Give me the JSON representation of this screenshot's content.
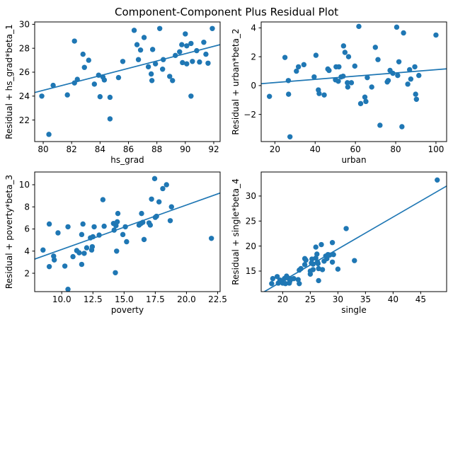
{
  "figure": {
    "title": "Component-Component Plus Residual Plot",
    "background": "#ffffff",
    "accent_color": "#1f77b4",
    "text_color": "#000000"
  },
  "chart_data": [
    {
      "id": "hs_grad",
      "type": "scatter",
      "xlabel": "hs_grad",
      "ylabel": "Residual + hs_grad*beta_1",
      "xlim": [
        79.4,
        92.45
      ],
      "ylim": [
        20.2,
        30.2
      ],
      "grid": false,
      "legend": null,
      "xticks": {
        "values": [
          80,
          82,
          84,
          86,
          88,
          90,
          92
        ],
        "labels": [
          "80",
          "82",
          "84",
          "86",
          "88",
          "90",
          "92"
        ]
      },
      "yticks": {
        "values": [
          22,
          24,
          26,
          28,
          30
        ],
        "labels": [
          "22",
          "24",
          "26",
          "28",
          "30"
        ]
      },
      "marker_color": "#1f77b4",
      "line_color": "#1f77b4",
      "trend_line": {
        "x": [
          79.4,
          92.45
        ],
        "y": [
          24.3,
          28.3
        ]
      },
      "points": [
        [
          79.9,
          24.0
        ],
        [
          80.4,
          20.8
        ],
        [
          80.7,
          24.9
        ],
        [
          81.7,
          24.1
        ],
        [
          82.2,
          28.6
        ],
        [
          82.2,
          25.1
        ],
        [
          82.4,
          25.4
        ],
        [
          82.8,
          27.5
        ],
        [
          82.9,
          26.4
        ],
        [
          83.2,
          27.0
        ],
        [
          83.6,
          25.0
        ],
        [
          83.9,
          25.75
        ],
        [
          84.0,
          23.95
        ],
        [
          84.2,
          25.6
        ],
        [
          84.3,
          25.35
        ],
        [
          84.7,
          23.9
        ],
        [
          84.7,
          22.1
        ],
        [
          85.3,
          25.55
        ],
        [
          85.6,
          26.9
        ],
        [
          86.4,
          29.5
        ],
        [
          86.6,
          28.3
        ],
        [
          86.7,
          27.05
        ],
        [
          86.85,
          27.85
        ],
        [
          87.1,
          28.9
        ],
        [
          87.4,
          26.45
        ],
        [
          87.6,
          25.85
        ],
        [
          87.65,
          25.3
        ],
        [
          87.7,
          27.9
        ],
        [
          87.9,
          26.7
        ],
        [
          88.2,
          29.65
        ],
        [
          88.4,
          26.25
        ],
        [
          88.45,
          27.05
        ],
        [
          88.9,
          25.65
        ],
        [
          89.1,
          25.3
        ],
        [
          89.3,
          27.4
        ],
        [
          89.6,
          27.7
        ],
        [
          89.75,
          28.3
        ],
        [
          89.8,
          26.8
        ],
        [
          90.0,
          29.2
        ],
        [
          90.1,
          28.2
        ],
        [
          90.1,
          26.7
        ],
        [
          90.4,
          24.0
        ],
        [
          90.4,
          28.4
        ],
        [
          90.5,
          26.9
        ],
        [
          90.8,
          27.8
        ],
        [
          91.0,
          26.85
        ],
        [
          91.3,
          28.5
        ],
        [
          91.45,
          27.5
        ],
        [
          91.6,
          26.75
        ],
        [
          91.9,
          29.65
        ]
      ]
    },
    {
      "id": "urban",
      "type": "scatter",
      "xlabel": "urban",
      "ylabel": "Residual + urban*beta_2",
      "xlim": [
        13.2,
        105.3
      ],
      "ylim": [
        -3.88,
        4.41
      ],
      "grid": false,
      "legend": null,
      "xticks": {
        "values": [
          20,
          40,
          60,
          80,
          100
        ],
        "labels": [
          "20",
          "40",
          "60",
          "80",
          "100"
        ]
      },
      "yticks": {
        "values": [
          -2,
          0,
          2,
          4
        ],
        "labels": [
          "−2",
          "0",
          "2",
          "4"
        ]
      },
      "marker_color": "#1f77b4",
      "line_color": "#1f77b4",
      "trend_line": {
        "x": [
          13.2,
          105.3
        ],
        "y": [
          0.13,
          1.16
        ]
      },
      "points": [
        [
          17.3,
          -0.75
        ],
        [
          25.0,
          1.95
        ],
        [
          26.7,
          0.35
        ],
        [
          26.8,
          -0.6
        ],
        [
          27.5,
          -3.55
        ],
        [
          30.7,
          1.0
        ],
        [
          31.7,
          1.3
        ],
        [
          34.4,
          1.45
        ],
        [
          39.5,
          0.6
        ],
        [
          40.4,
          2.1
        ],
        [
          41.6,
          -0.3
        ],
        [
          42.0,
          -0.55
        ],
        [
          44.5,
          -0.65
        ],
        [
          46.3,
          1.15
        ],
        [
          46.9,
          1.05
        ],
        [
          50.1,
          0.4
        ],
        [
          50.4,
          1.3
        ],
        [
          51.5,
          0.3
        ],
        [
          51.8,
          1.3
        ],
        [
          52.9,
          0.6
        ],
        [
          53.9,
          0.65
        ],
        [
          54.1,
          2.75
        ],
        [
          54.8,
          2.3
        ],
        [
          56.0,
          0.2
        ],
        [
          56.2,
          -0.1
        ],
        [
          56.6,
          2.0
        ],
        [
          58.0,
          0.2
        ],
        [
          59.7,
          1.35
        ],
        [
          61.7,
          4.1
        ],
        [
          62.6,
          -1.25
        ],
        [
          64.7,
          -0.8
        ],
        [
          65.2,
          -1.1
        ],
        [
          65.9,
          0.55
        ],
        [
          68.1,
          -0.1
        ],
        [
          69.9,
          2.65
        ],
        [
          71.2,
          1.8
        ],
        [
          72.2,
          -2.75
        ],
        [
          75.8,
          0.25
        ],
        [
          76.3,
          0.35
        ],
        [
          77.2,
          1.05
        ],
        [
          78.6,
          0.85
        ],
        [
          80.5,
          4.05
        ],
        [
          81.0,
          0.7
        ],
        [
          81.6,
          1.65
        ],
        [
          83.1,
          -2.85
        ],
        [
          83.9,
          3.65
        ],
        [
          86.0,
          0.1
        ],
        [
          86.9,
          1.1
        ],
        [
          87.5,
          0.45
        ],
        [
          89.5,
          1.3
        ],
        [
          89.9,
          -0.6
        ],
        [
          90.3,
          -0.95
        ],
        [
          91.5,
          0.7
        ],
        [
          100.0,
          3.5
        ]
      ]
    },
    {
      "id": "poverty",
      "type": "scatter",
      "xlabel": "poverty",
      "ylabel": "Residual + poverty*beta_3",
      "xlim": [
        7.83,
        22.7
      ],
      "ylim": [
        0.34,
        11.15
      ],
      "grid": false,
      "legend": null,
      "xticks": {
        "values": [
          10.0,
          12.5,
          15.0,
          17.5,
          20.0,
          22.5
        ],
        "labels": [
          "10.0",
          "12.5",
          "15.0",
          "17.5",
          "20.0",
          "22.5"
        ]
      },
      "yticks": {
        "values": [
          2,
          4,
          6,
          8,
          10
        ],
        "labels": [
          "2",
          "4",
          "6",
          "8",
          "10"
        ]
      },
      "marker_color": "#1f77b4",
      "line_color": "#1f77b4",
      "trend_line": {
        "x": [
          7.83,
          22.7
        ],
        "y": [
          3.28,
          9.25
        ]
      },
      "points": [
        [
          8.5,
          4.1
        ],
        [
          9.0,
          6.45
        ],
        [
          9.0,
          2.6
        ],
        [
          9.35,
          3.55
        ],
        [
          9.4,
          3.2
        ],
        [
          9.7,
          5.65
        ],
        [
          10.25,
          2.65
        ],
        [
          10.5,
          0.55
        ],
        [
          10.5,
          6.2
        ],
        [
          10.9,
          3.5
        ],
        [
          11.2,
          4.05
        ],
        [
          11.4,
          3.85
        ],
        [
          11.6,
          2.8
        ],
        [
          11.6,
          5.5
        ],
        [
          11.7,
          6.45
        ],
        [
          11.8,
          3.8
        ],
        [
          12.0,
          4.3
        ],
        [
          12.3,
          5.2
        ],
        [
          12.4,
          4.1
        ],
        [
          12.45,
          4.4
        ],
        [
          12.5,
          5.3
        ],
        [
          12.6,
          6.2
        ],
        [
          13.0,
          5.45
        ],
        [
          13.3,
          8.65
        ],
        [
          13.4,
          6.25
        ],
        [
          14.15,
          6.5
        ],
        [
          14.2,
          5.9
        ],
        [
          14.3,
          2.05
        ],
        [
          14.35,
          6.3
        ],
        [
          14.4,
          4.0
        ],
        [
          14.45,
          6.65
        ],
        [
          14.5,
          7.4
        ],
        [
          14.9,
          5.5
        ],
        [
          15.1,
          6.2
        ],
        [
          15.2,
          4.85
        ],
        [
          16.2,
          6.35
        ],
        [
          16.35,
          6.5
        ],
        [
          16.4,
          7.4
        ],
        [
          16.5,
          6.6
        ],
        [
          16.6,
          5.05
        ],
        [
          17.0,
          6.55
        ],
        [
          17.1,
          6.35
        ],
        [
          17.2,
          8.7
        ],
        [
          17.45,
          10.55
        ],
        [
          17.5,
          7.05
        ],
        [
          17.6,
          7.15
        ],
        [
          17.8,
          8.45
        ],
        [
          18.1,
          9.65
        ],
        [
          18.4,
          10.0
        ],
        [
          18.7,
          6.75
        ],
        [
          18.8,
          8.0
        ],
        [
          22.0,
          5.15
        ]
      ]
    },
    {
      "id": "single",
      "type": "scatter",
      "xlabel": "single",
      "ylabel": "Residual + single*beta_4",
      "xlim": [
        16.1,
        49.7
      ],
      "ylim": [
        10.9,
        34.8
      ],
      "grid": false,
      "legend": null,
      "xticks": {
        "values": [
          20,
          25,
          30,
          35,
          40,
          45
        ],
        "labels": [
          "20",
          "25",
          "30",
          "35",
          "40",
          "45"
        ]
      },
      "yticks": {
        "values": [
          15,
          20,
          25,
          30
        ],
        "labels": [
          "15",
          "20",
          "25",
          "30"
        ]
      },
      "marker_color": "#1f77b4",
      "line_color": "#1f77b4",
      "trend_line": {
        "x": [
          16.1,
          49.7
        ],
        "y": [
          10.53,
          32.0
        ]
      },
      "points": [
        [
          18.0,
          12.5
        ],
        [
          18.2,
          13.5
        ],
        [
          19.0,
          13.9
        ],
        [
          19.2,
          12.6
        ],
        [
          19.5,
          13.2
        ],
        [
          20.0,
          12.6
        ],
        [
          20.3,
          13.5
        ],
        [
          20.5,
          12.5
        ],
        [
          20.7,
          14.0
        ],
        [
          21.0,
          13.6
        ],
        [
          21.2,
          12.6
        ],
        [
          21.3,
          13.0
        ],
        [
          21.5,
          13.4
        ],
        [
          22.0,
          13.5
        ],
        [
          22.8,
          13.3
        ],
        [
          23.0,
          12.5
        ],
        [
          23.0,
          15.2
        ],
        [
          23.3,
          15.5
        ],
        [
          24.0,
          16.3
        ],
        [
          24.0,
          17.5
        ],
        [
          24.2,
          17.2
        ],
        [
          25.0,
          14.4
        ],
        [
          25.0,
          15.0
        ],
        [
          25.2,
          16.6
        ],
        [
          25.3,
          17.4
        ],
        [
          25.5,
          15.3
        ],
        [
          25.5,
          16.4
        ],
        [
          26.0,
          19.8
        ],
        [
          26.0,
          17.6
        ],
        [
          26.2,
          18.4
        ],
        [
          26.3,
          16.8
        ],
        [
          26.4,
          16.5
        ],
        [
          26.5,
          15.5
        ],
        [
          26.5,
          13.1
        ],
        [
          27.0,
          20.3
        ],
        [
          27.2,
          15.3
        ],
        [
          27.5,
          17.0
        ],
        [
          27.8,
          18.0
        ],
        [
          28.0,
          17.5
        ],
        [
          28.2,
          18.3
        ],
        [
          28.5,
          18.2
        ],
        [
          29.0,
          20.7
        ],
        [
          29.0,
          16.8
        ],
        [
          29.2,
          18.3
        ],
        [
          30.0,
          15.4
        ],
        [
          31.5,
          23.5
        ],
        [
          33.0,
          17.1
        ],
        [
          48.0,
          33.2
        ]
      ]
    }
  ]
}
